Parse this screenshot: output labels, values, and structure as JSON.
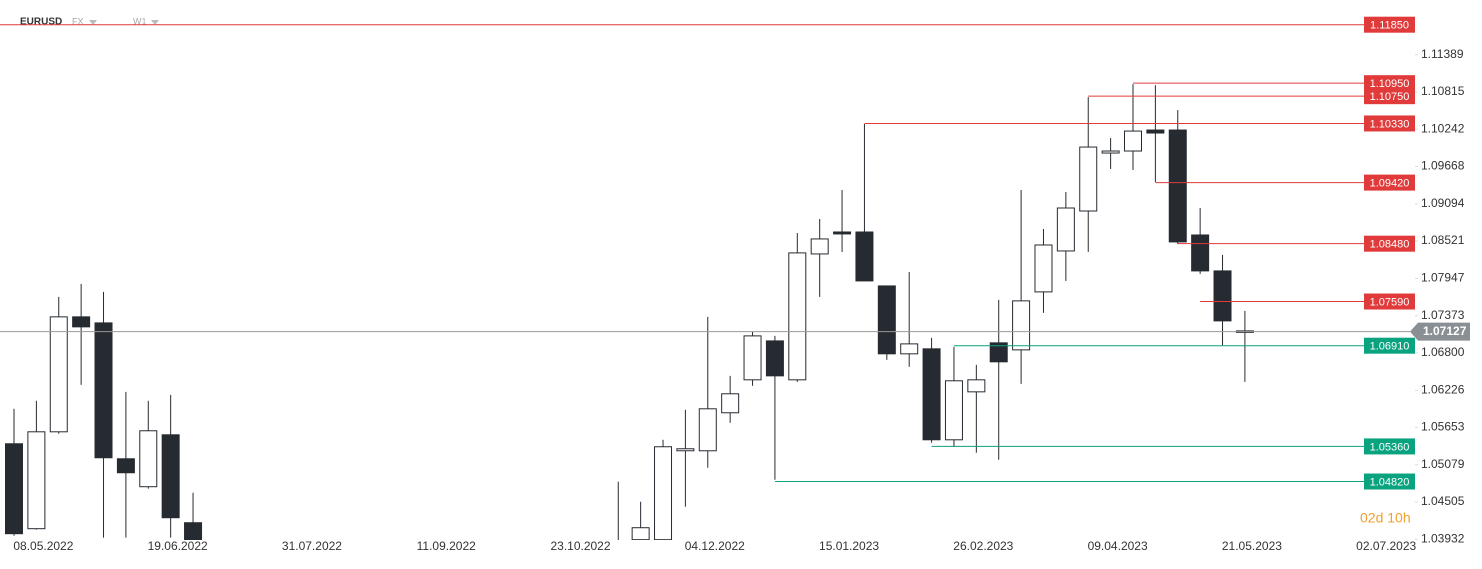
{
  "chart_data": {
    "type": "candlestick",
    "symbol": "EURUSD",
    "market": "FX",
    "interval": "W1",
    "countdown": "02d 10h",
    "categories": [
      null,
      "08.05.2022",
      null,
      null,
      null,
      null,
      null,
      "19.06.2022",
      null,
      null,
      null,
      null,
      null,
      "31.07.2022",
      null,
      null,
      null,
      null,
      null,
      "11.09.2022",
      null,
      null,
      null,
      null,
      null,
      "23.10.2022",
      null,
      null,
      null,
      null,
      null,
      "04.12.2022",
      null,
      null,
      null,
      null,
      null,
      "15.01.2023",
      null,
      null,
      null,
      null,
      null,
      "26.02.2023",
      null,
      null,
      null,
      null,
      null,
      "09.04.2023",
      null,
      null,
      null,
      null,
      null,
      "21.05.2023",
      null,
      null,
      null,
      null,
      null,
      "02.07.2023"
    ],
    "open": [
      1.05401,
      1.04094,
      1.05585,
      1.07354,
      1.07261,
      1.0517,
      1.0474,
      1.05539,
      1.04186,
      null,
      null,
      null,
      null,
      null,
      null,
      null,
      null,
      null,
      null,
      null,
      null,
      null,
      null,
      null,
      null,
      null,
      null,
      1.0385,
      1.03925,
      1.03925,
      1.05293,
      1.05293,
      1.05878,
      1.06385,
      1.06984,
      1.06385,
      1.08322,
      1.0866,
      1.0866,
      1.0783,
      1.06785,
      1.06862,
      1.05462,
      1.062,
      1.06954,
      1.06846,
      1.07738,
      1.08368,
      1.08983,
      1.09875,
      1.09906,
      1.10229,
      1.10229,
      1.08614,
      1.08061,
      1.07123,
      null,
      null,
      null,
      null,
      null,
      null
    ],
    "high": [
      1.05939,
      1.06062,
      1.07661,
      1.07861,
      1.07738,
      1.062,
      1.06062,
      1.06154,
      1.04647,
      null,
      null,
      null,
      null,
      null,
      null,
      null,
      null,
      null,
      null,
      null,
      null,
      null,
      null,
      null,
      null,
      null,
      null,
      1.04817,
      1.04509,
      1.05462,
      1.05924,
      1.07354,
      1.06446,
      1.07123,
      1.07061,
      1.08645,
      1.0886,
      1.09306,
      1.10321,
      1.0783,
      1.08045,
      1.07031,
      1.06892,
      1.06615,
      1.07615,
      1.09306,
      1.08706,
      1.09275,
      1.10736,
      1.10106,
      1.10936,
      1.1092,
      1.10536,
      1.0903,
      1.08307,
      1.07446,
      null,
      null,
      null,
      null,
      null,
      null
    ],
    "low": [
      1.03986,
      1.04079,
      1.05555,
      1.06308,
      1.03956,
      1.03956,
      1.0471,
      1.03956,
      1.039,
      null,
      null,
      null,
      null,
      null,
      null,
      null,
      null,
      null,
      null,
      null,
      null,
      null,
      null,
      null,
      null,
      null,
      null,
      1.038,
      1.03925,
      1.03925,
      1.04432,
      1.05032,
      1.05724,
      1.06293,
      1.04847,
      1.06354,
      1.07661,
      1.08353,
      1.07907,
      1.06692,
      1.06585,
      1.05416,
      1.05355,
      1.05263,
      1.05155,
      1.06323,
      1.07415,
      1.07907,
      1.08353,
      1.09629,
      1.09614,
      1.09429,
      1.08476,
      1.08015,
      1.06915,
      1.06354,
      null,
      null,
      null,
      null,
      null,
      null
    ],
    "close": [
      1.04017,
      1.05585,
      1.07354,
      1.072,
      1.05186,
      1.04955,
      1.05601,
      1.04263,
      1.0392,
      null,
      null,
      null,
      null,
      null,
      null,
      null,
      null,
      null,
      null,
      null,
      null,
      null,
      null,
      null,
      null,
      null,
      null,
      1.0388,
      1.04109,
      1.05355,
      1.05324,
      1.05939,
      1.0617,
      1.07061,
      1.06446,
      1.08338,
      1.08553,
      1.0863,
      1.07907,
      1.06785,
      1.06938,
      1.05462,
      1.0637,
      1.06385,
      1.06662,
      1.076,
      1.0846,
      1.09029,
      1.09967,
      1.09906,
      1.10213,
      1.10183,
      1.08507,
      1.08061,
      1.07292,
      1.07138,
      null,
      null,
      null,
      null,
      null,
      null
    ],
    "color": "#262b31",
    "ylim": [
      1.0392,
      1.1223
    ],
    "yticks": [
      1.11389,
      1.10815,
      1.10242,
      1.09668,
      1.09094,
      1.08521,
      1.07947,
      1.07373,
      {
        "value": 1.068,
        "label": "1.06800"
      },
      1.06226,
      1.05653,
      1.05079,
      1.04505,
      1.03932
    ],
    "current_price": 1.07127,
    "levels": [
      {
        "value": 1.1185,
        "label": "1.11850",
        "color": "#e03a3a"
      },
      {
        "value": 1.1095,
        "label": "1.10950",
        "color": "#e03a3a"
      },
      {
        "value": 1.1075,
        "label": "1.10750",
        "color": "#e03a3a"
      },
      {
        "value": 1.1033,
        "label": "1.10330",
        "color": "#e03a3a"
      },
      {
        "value": 1.0942,
        "label": "1.09420",
        "color": "#e03a3a"
      },
      {
        "value": 1.0848,
        "label": "1.08480",
        "color": "#e03a3a"
      },
      {
        "value": 1.0759,
        "label": "1.07590",
        "color": "#e03a3a"
      },
      {
        "value": 1.0691,
        "label": "1.06910",
        "color": "#0aa37f"
      },
      {
        "value": 1.0536,
        "label": "1.05360",
        "color": "#0aa37f"
      },
      {
        "value": 1.0482,
        "label": "1.04820",
        "color": "#0aa37f"
      }
    ]
  }
}
